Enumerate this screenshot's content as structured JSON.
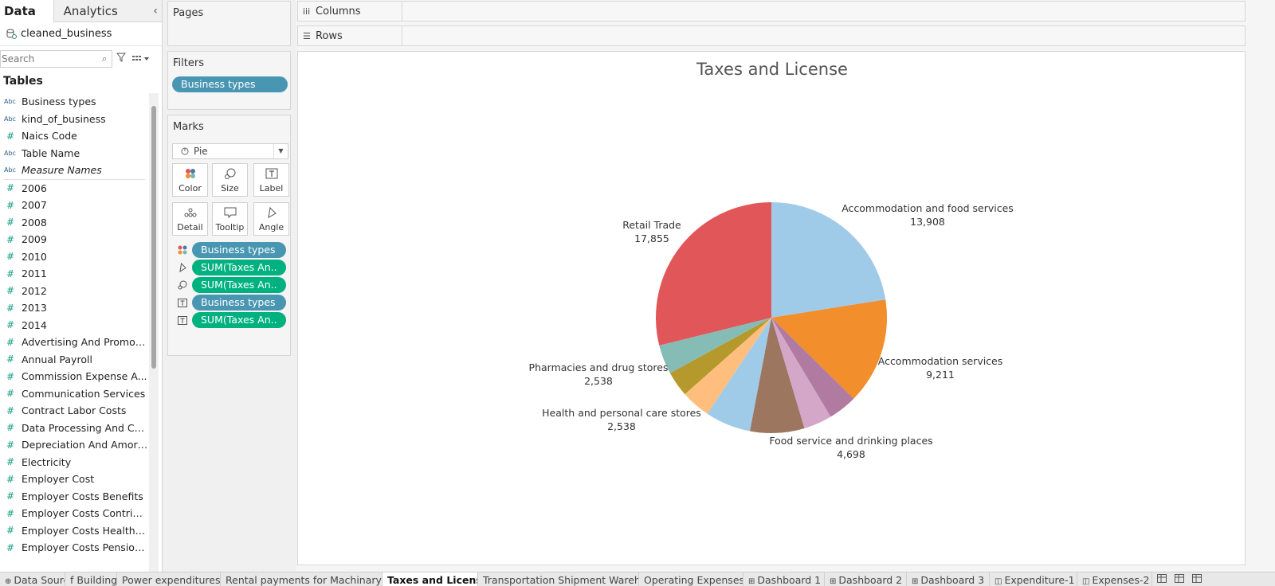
{
  "data_pane": {
    "tab_data": "Data",
    "tab_analytics": "Analytics",
    "collapse_glyph": "‹",
    "datasource_name": "cleaned_business",
    "search_placeholder": "Search",
    "tables_heading": "Tables",
    "fields": [
      {
        "type": "Abc",
        "label": "Business types"
      },
      {
        "type": "Abc",
        "label": "kind_of_business"
      },
      {
        "type": "#",
        "label": "Naics Code"
      },
      {
        "type": "Abc",
        "label": "Table Name"
      },
      {
        "type": "Abc",
        "label": "Measure Names",
        "italic": true,
        "separator_after": true
      },
      {
        "type": "#",
        "label": "2006"
      },
      {
        "type": "#",
        "label": "2007"
      },
      {
        "type": "#",
        "label": "2008"
      },
      {
        "type": "#",
        "label": "2009"
      },
      {
        "type": "#",
        "label": "2010"
      },
      {
        "type": "#",
        "label": "2011"
      },
      {
        "type": "#",
        "label": "2012"
      },
      {
        "type": "#",
        "label": "2013"
      },
      {
        "type": "#",
        "label": "2014"
      },
      {
        "type": "#",
        "label": "Advertising And Promoti..."
      },
      {
        "type": "#",
        "label": "Annual Payroll"
      },
      {
        "type": "#",
        "label": "Commission Expense A..."
      },
      {
        "type": "#",
        "label": "Communication Services"
      },
      {
        "type": "#",
        "label": "Contract Labor Costs"
      },
      {
        "type": "#",
        "label": "Data Processing And Co..."
      },
      {
        "type": "#",
        "label": "Depreciation And Amorti..."
      },
      {
        "type": "#",
        "label": "Electricity"
      },
      {
        "type": "#",
        "label": "Employer Cost"
      },
      {
        "type": "#",
        "label": "Employer Costs Benefits"
      },
      {
        "type": "#",
        "label": "Employer Costs Contrib..."
      },
      {
        "type": "#",
        "label": "Employer Costs Health I..."
      },
      {
        "type": "#",
        "label": "Employer Costs Pension..."
      }
    ]
  },
  "shelves": {
    "pages_label": "Pages",
    "filters_label": "Filters",
    "filter_pill": "Business types",
    "marks_label": "Marks",
    "mark_type": "Pie",
    "mark_buttons": [
      "Color",
      "Size",
      "Label",
      "Detail",
      "Tooltip",
      "Angle"
    ],
    "mark_pills": [
      {
        "icon": "color",
        "label": "Business types",
        "kind": "dimension"
      },
      {
        "icon": "angle",
        "label": "SUM(Taxes An..",
        "kind": "measure"
      },
      {
        "icon": "size",
        "label": "SUM(Taxes An..",
        "kind": "measure"
      },
      {
        "icon": "label",
        "label": "Business types",
        "kind": "dimension"
      },
      {
        "icon": "label",
        "label": "SUM(Taxes An..",
        "kind": "measure"
      }
    ],
    "columns_label": "Columns",
    "rows_label": "Rows"
  },
  "chart_data": {
    "type": "pie",
    "title": "Taxes and License",
    "slices": [
      {
        "name": "Accommodation and food services",
        "value": 13908,
        "color": "#a0cbe8",
        "label": "13,908",
        "labeled": true
      },
      {
        "name": "Accommodation services",
        "value": 9211,
        "color": "#f28e2b",
        "label": "9,211",
        "labeled": true
      },
      {
        "name": "",
        "value": 2500,
        "color": "#b07aa1",
        "label": "",
        "labeled": false
      },
      {
        "name": "",
        "value": 2450,
        "color": "#d4a6c8",
        "label": "",
        "labeled": false
      },
      {
        "name": "Food service and drinking places",
        "value": 4698,
        "color": "#9d7660",
        "label": "4,698",
        "labeled": true
      },
      {
        "name": "",
        "value": 3950,
        "color": "#a0cbe8",
        "label": "",
        "labeled": false
      },
      {
        "name": "Health and personal care stores",
        "value": 2538,
        "color": "#ffbe7d",
        "label": "2,538",
        "labeled": true
      },
      {
        "name": "",
        "value": 2200,
        "color": "#b6992d",
        "label": "",
        "labeled": false
      },
      {
        "name": "Pharmacies and drug stores",
        "value": 2538,
        "color": "#86bcb6",
        "label": "2,538",
        "labeled": true
      },
      {
        "name": "Retail Trade",
        "value": 17855,
        "color": "#e15759",
        "label": "17,855",
        "labeled": true
      }
    ]
  },
  "sheet_tabs": [
    {
      "label": "Data Source",
      "icon": "⊕",
      "active": false
    },
    {
      "label": "f Building",
      "icon": "",
      "active": false
    },
    {
      "label": "Power expenditures",
      "icon": "",
      "active": false
    },
    {
      "label": "Rental payments for Machinary",
      "icon": "",
      "active": false
    },
    {
      "label": "Taxes and License",
      "icon": "",
      "active": true
    },
    {
      "label": "Transportation Shipment Wareh...",
      "icon": "",
      "active": false
    },
    {
      "label": "Operating Expenses",
      "icon": "",
      "active": false
    },
    {
      "label": "Dashboard 1",
      "icon": "⊞",
      "active": false
    },
    {
      "label": "Dashboard 2",
      "icon": "⊞",
      "active": false
    },
    {
      "label": "Dashboard 3",
      "icon": "⊞",
      "active": false
    },
    {
      "label": "Expenditure-1",
      "icon": "◫",
      "active": false
    },
    {
      "label": "Expenses-2",
      "icon": "◫",
      "active": false
    }
  ]
}
